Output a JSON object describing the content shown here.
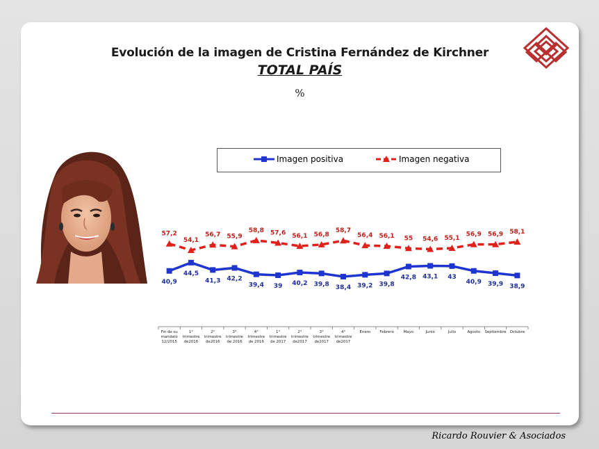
{
  "slide": {
    "title": "Evolución de la imagen de Cristina Fernández de Kirchner",
    "subtitle": "TOTAL PAÍS",
    "unit": "%",
    "footer": "Ricardo Rouvier & Asociados"
  },
  "colors": {
    "positive": "#1f35d0",
    "negative": "#e0201a",
    "positive_label": "#1f2f9a",
    "negative_label": "#c0201a",
    "logo": "#b83030",
    "rule": "#8c3b6c"
  },
  "chart_data": {
    "type": "line",
    "categories": [
      [
        "Fin de su",
        "mandato",
        "12/2015"
      ],
      [
        "1°",
        "trimestre",
        "de2016"
      ],
      [
        "2°",
        "trimestre",
        "de2016"
      ],
      [
        "3°",
        "trimestre",
        "de 2016"
      ],
      [
        "4°",
        "trimestre",
        "de 2016"
      ],
      [
        "1°",
        "trimestre",
        "de 2017"
      ],
      [
        "2°",
        "trimestre",
        "de2017"
      ],
      [
        "3°",
        "trimestre",
        "de2017"
      ],
      [
        "4°",
        "trimestre",
        "de2017"
      ],
      [
        "Enero"
      ],
      [
        "Febrero"
      ],
      [
        "Mayo"
      ],
      [
        "Junio"
      ],
      [
        "Julio"
      ],
      [
        "Agosto"
      ],
      [
        "Septiembre"
      ],
      [
        "Octubre"
      ]
    ],
    "series": [
      {
        "name": "Imagen positiva",
        "marker": "square",
        "line_style": "solid",
        "values": [
          40.9,
          44.5,
          41.3,
          42.2,
          39.4,
          39,
          40.2,
          39.8,
          38.4,
          39.2,
          39.8,
          42.8,
          43.1,
          43,
          40.9,
          39.9,
          38.9
        ],
        "labels": [
          "40,9",
          "44,5",
          "41,3",
          "42,2",
          "39,4",
          "39",
          "40,2",
          "39,8",
          "38,4",
          "39,2",
          "39,8",
          "42,8",
          "43,1",
          "43",
          "40,9",
          "39,9",
          "38,9"
        ]
      },
      {
        "name": "Imagen negativa",
        "marker": "triangle",
        "line_style": "dashed",
        "values": [
          57.2,
          54.1,
          56.7,
          55.9,
          58.8,
          57.6,
          56.1,
          56.8,
          58.7,
          56.4,
          56.1,
          55,
          54.6,
          55.1,
          56.9,
          56.9,
          58.1
        ],
        "labels": [
          "57,2",
          "54,1",
          "56,7",
          "55,9",
          "58,8",
          "57,6",
          "56,1",
          "56,8",
          "58,7",
          "56,4",
          "56,1",
          "55",
          "54,6",
          "55,1",
          "56,9",
          "56,9",
          "58,1"
        ]
      }
    ],
    "legend_position": "top"
  }
}
